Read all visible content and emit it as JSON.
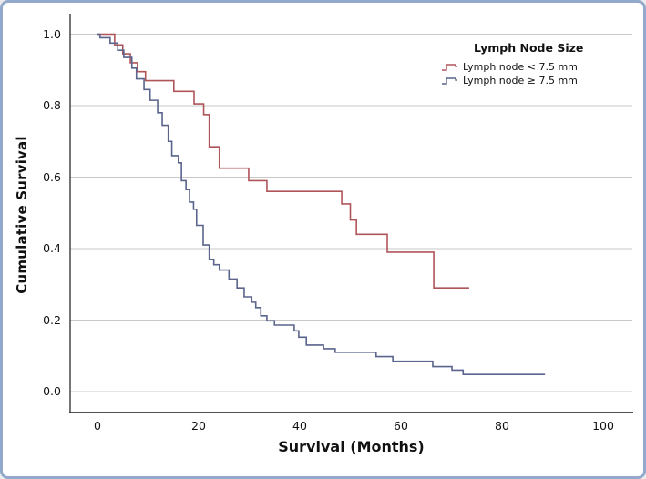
{
  "chart_data": {
    "type": "line",
    "subtype": "kaplan-meier-step",
    "title": "",
    "xlabel": "Survival (Months)",
    "ylabel": "Cumulative Survival",
    "xlim": [
      -5.5,
      106
    ],
    "ylim": [
      -0.06,
      1.06
    ],
    "x_ticks": [
      0,
      20,
      40,
      60,
      80,
      100
    ],
    "y_ticks": [
      "0.0",
      "0.2",
      "0.4",
      "0.6",
      "0.8",
      "1.0"
    ],
    "grid": "horizontal-only",
    "colors": {
      "gridline": "#c9c9c9",
      "axis": "#3a3a3a",
      "border": "#92a9cb",
      "red_series": "#af555a",
      "blue_series": "#5a648c"
    },
    "legend": {
      "title": "Lymph Node Size",
      "position": "top-right",
      "items": [
        {
          "label": "Lymph node < 7.5 mm",
          "color": "#af555a"
        },
        {
          "label": "Lymph node ≥ 7.5 mm",
          "color": "#5a648c"
        }
      ]
    },
    "series": [
      {
        "name": "Lymph node < 7.5 mm",
        "color": "#af555a",
        "end_month": 73.5,
        "steps": [
          [
            0,
            1.0
          ],
          [
            3.4,
            0.97
          ],
          [
            5.0,
            0.945
          ],
          [
            6.5,
            0.92
          ],
          [
            7.9,
            0.895
          ],
          [
            9.5,
            0.87
          ],
          [
            15.1,
            0.84
          ],
          [
            19.1,
            0.805
          ],
          [
            21.0,
            0.775
          ],
          [
            22.1,
            0.685
          ],
          [
            24.1,
            0.625
          ],
          [
            29.9,
            0.59
          ],
          [
            33.5,
            0.56
          ],
          [
            48.3,
            0.525
          ],
          [
            50.0,
            0.48
          ],
          [
            51.2,
            0.44
          ],
          [
            57.3,
            0.39
          ],
          [
            66.5,
            0.29
          ]
        ]
      },
      {
        "name": "Lymph node ≥ 7.5 mm",
        "color": "#5a648c",
        "end_month": 88.5,
        "steps": [
          [
            0,
            1.0
          ],
          [
            0.5,
            0.99
          ],
          [
            2.5,
            0.975
          ],
          [
            4.0,
            0.955
          ],
          [
            5.2,
            0.935
          ],
          [
            6.8,
            0.905
          ],
          [
            7.7,
            0.875
          ],
          [
            9.2,
            0.845
          ],
          [
            10.4,
            0.815
          ],
          [
            11.9,
            0.78
          ],
          [
            12.8,
            0.745
          ],
          [
            14.0,
            0.7
          ],
          [
            14.7,
            0.66
          ],
          [
            16.0,
            0.64
          ],
          [
            16.6,
            0.59
          ],
          [
            17.5,
            0.565
          ],
          [
            18.2,
            0.53
          ],
          [
            19.0,
            0.51
          ],
          [
            19.6,
            0.465
          ],
          [
            20.9,
            0.41
          ],
          [
            22.1,
            0.37
          ],
          [
            23.0,
            0.355
          ],
          [
            24.1,
            0.34
          ],
          [
            26.0,
            0.315
          ],
          [
            27.6,
            0.29
          ],
          [
            29.0,
            0.265
          ],
          [
            30.5,
            0.25
          ],
          [
            31.3,
            0.235
          ],
          [
            32.3,
            0.212
          ],
          [
            33.5,
            0.198
          ],
          [
            35.0,
            0.186
          ],
          [
            38.9,
            0.17
          ],
          [
            39.8,
            0.152
          ],
          [
            41.3,
            0.13
          ],
          [
            44.7,
            0.12
          ],
          [
            47.0,
            0.11
          ],
          [
            55.1,
            0.098
          ],
          [
            58.4,
            0.085
          ],
          [
            66.3,
            0.07
          ],
          [
            70.1,
            0.06
          ],
          [
            72.3,
            0.048
          ]
        ]
      }
    ]
  }
}
